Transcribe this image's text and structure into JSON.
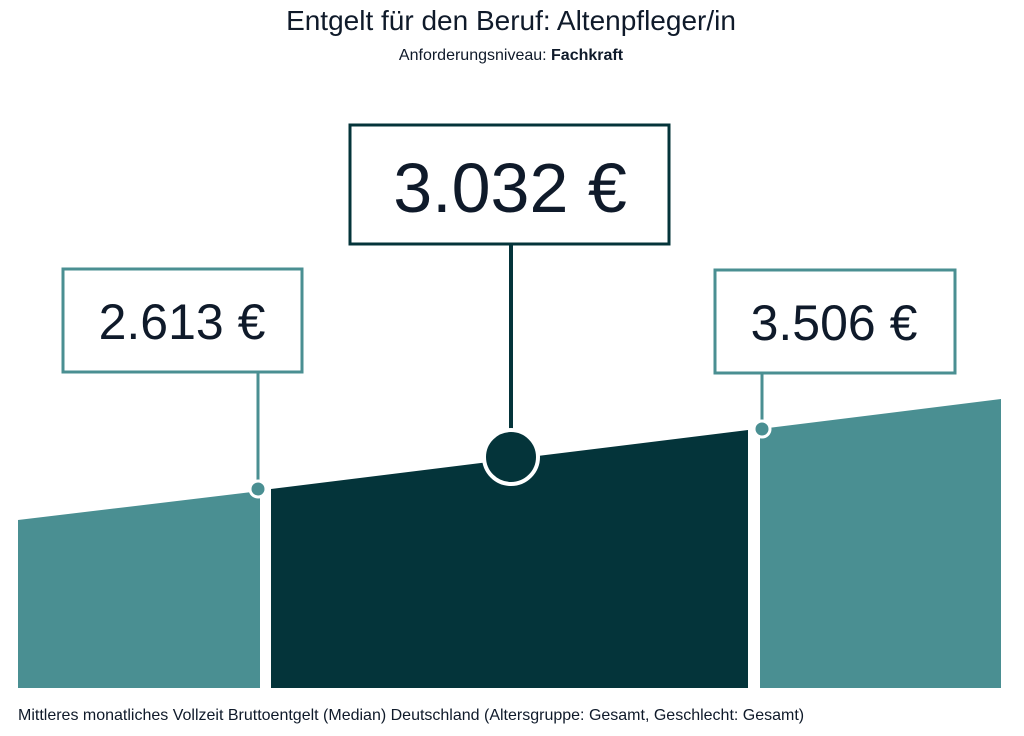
{
  "header": {
    "title": "Entgelt für den Beruf: Altenpfleger/in",
    "level_label": "Anforderungsniveau:",
    "level_value": "Fachkraft"
  },
  "figures": {
    "lower": "2.613 €",
    "median": "3.032 €",
    "upper": "3.506 €"
  },
  "footnote": "Mittleres monatliches Vollzeit Bruttoentgelt (Median) Deutschland (Altersgruppe: Gesamt, Geschlecht: Gesamt)"
}
